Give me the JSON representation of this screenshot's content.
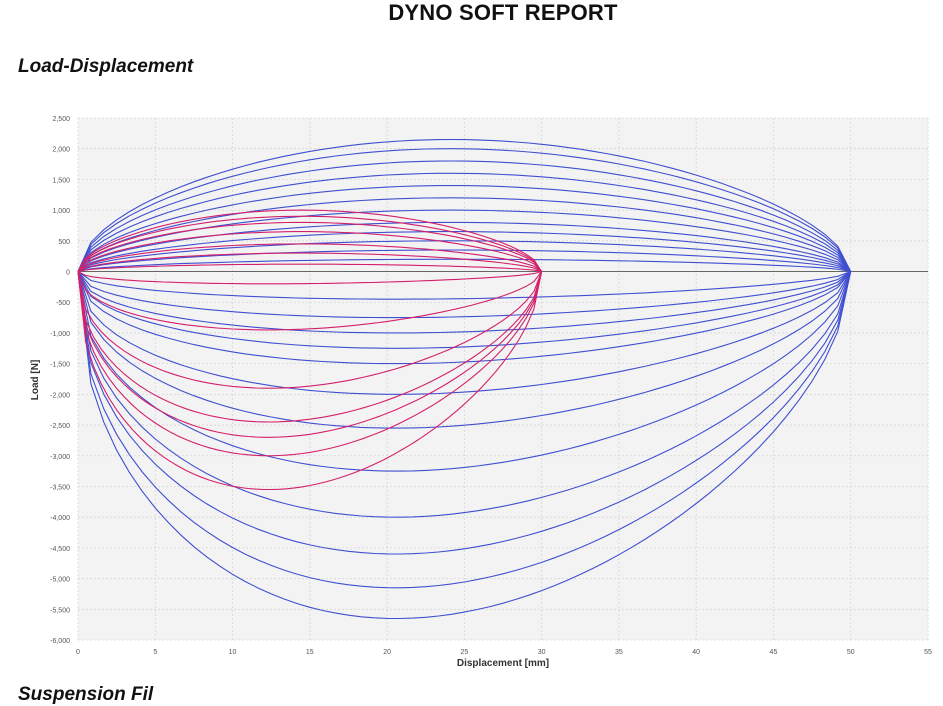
{
  "report": {
    "title": "DYNO SOFT REPORT"
  },
  "section": {
    "title": "Load-Displacement",
    "next_title": "Suspension Fil"
  },
  "chart_data": {
    "type": "line",
    "title": "",
    "xlabel": "Displacement [mm]",
    "ylabel": "Load [N]",
    "xlim": [
      0,
      55
    ],
    "ylim": [
      -6000,
      2500
    ],
    "x_ticks": [
      0,
      5,
      10,
      15,
      20,
      25,
      30,
      35,
      40,
      45,
      50,
      55
    ],
    "y_ticks": [
      2500,
      2000,
      1500,
      1000,
      500,
      0,
      -500,
      -1000,
      -1500,
      -2000,
      -2500,
      -3000,
      -3500,
      -4000,
      -4500,
      -5000,
      -5500,
      -6000
    ],
    "y_tick_labels": [
      "2,500",
      "2,000",
      "1,500",
      "1,000",
      "500",
      "0",
      "-500",
      "-1,000",
      "-1,500",
      "-2,000",
      "-2,500",
      "-3,000",
      "-3,500",
      "-4,000",
      "-4,500",
      "-5,000",
      "-5,500",
      "-6,000"
    ],
    "grid": true,
    "colors": {
      "stroke_50mm": "#3f4fd0",
      "stroke_30mm": "#d4206a",
      "zero_line": "#666666",
      "plot_bg": "#f3f3f3"
    },
    "series": [
      {
        "stroke": 50,
        "color": "#3f4fd0",
        "peak_extension": 2150,
        "peak_compression": -5650
      },
      {
        "stroke": 50,
        "color": "#3f4fd0",
        "peak_extension": 2000,
        "peak_compression": -5150
      },
      {
        "stroke": 50,
        "color": "#3f4fd0",
        "peak_extension": 1800,
        "peak_compression": -4600
      },
      {
        "stroke": 50,
        "color": "#3f4fd0",
        "peak_extension": 1600,
        "peak_compression": -4000
      },
      {
        "stroke": 50,
        "color": "#3f4fd0",
        "peak_extension": 1400,
        "peak_compression": -3250
      },
      {
        "stroke": 50,
        "color": "#3f4fd0",
        "peak_extension": 1200,
        "peak_compression": -2550
      },
      {
        "stroke": 50,
        "color": "#3f4fd0",
        "peak_extension": 1000,
        "peak_compression": -2000
      },
      {
        "stroke": 50,
        "color": "#3f4fd0",
        "peak_extension": 800,
        "peak_compression": -1500
      },
      {
        "stroke": 50,
        "color": "#3f4fd0",
        "peak_extension": 650,
        "peak_compression": -1250
      },
      {
        "stroke": 50,
        "color": "#3f4fd0",
        "peak_extension": 500,
        "peak_compression": -1000
      },
      {
        "stroke": 50,
        "color": "#3f4fd0",
        "peak_extension": 350,
        "peak_compression": -750
      },
      {
        "stroke": 50,
        "color": "#3f4fd0",
        "peak_extension": 200,
        "peak_compression": -450
      },
      {
        "stroke": 30,
        "color": "#d4206a",
        "peak_extension": 1000,
        "peak_compression": -3550
      },
      {
        "stroke": 30,
        "color": "#d4206a",
        "peak_extension": 900,
        "peak_compression": -3000
      },
      {
        "stroke": 30,
        "color": "#d4206a",
        "peak_extension": 800,
        "peak_compression": -2700
      },
      {
        "stroke": 30,
        "color": "#d4206a",
        "peak_extension": 650,
        "peak_compression": -2450
      },
      {
        "stroke": 30,
        "color": "#d4206a",
        "peak_extension": 450,
        "peak_compression": -1900
      },
      {
        "stroke": 30,
        "color": "#d4206a",
        "peak_extension": 300,
        "peak_compression": -950
      },
      {
        "stroke": 30,
        "color": "#d4206a",
        "peak_extension": 120,
        "peak_compression": -200
      }
    ]
  }
}
